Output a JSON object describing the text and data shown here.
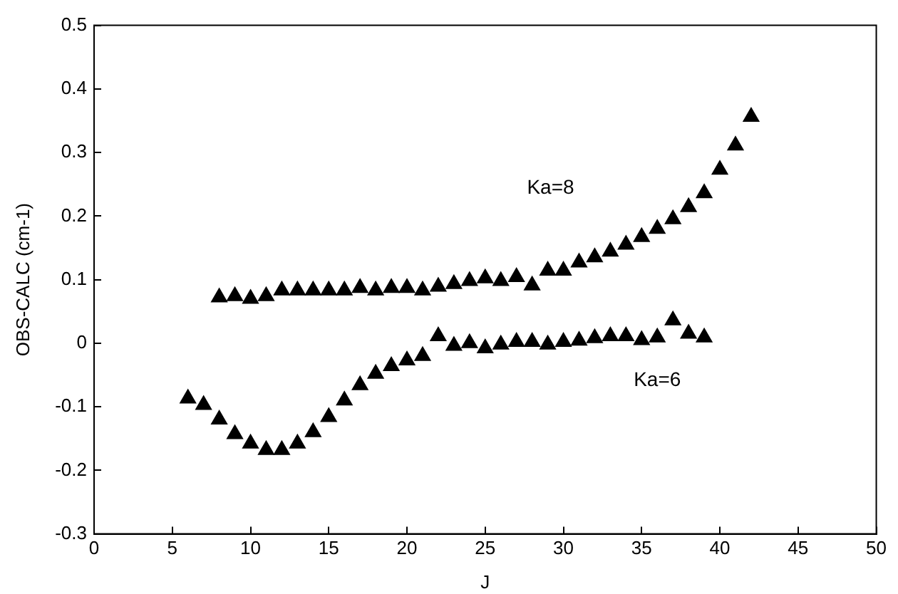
{
  "chart_data": {
    "type": "scatter",
    "xlabel": "J",
    "ylabel": "OBS-CALC (cm-1)",
    "marker": "triangle",
    "grid": false,
    "legend": false,
    "xlim": [
      0,
      50
    ],
    "xticks": [
      0,
      5,
      10,
      15,
      20,
      25,
      30,
      35,
      40,
      45,
      50
    ],
    "ylim": [
      -0.3,
      0.5
    ],
    "yticks": [
      -0.3,
      -0.2,
      -0.1,
      0,
      0.1,
      0.2,
      0.3,
      0.4,
      0.5
    ],
    "series": [
      {
        "name": "Ka=8",
        "color": "#000000",
        "x": [
          8,
          9,
          10,
          11,
          12,
          13,
          14,
          15,
          16,
          17,
          18,
          19,
          20,
          21,
          22,
          23,
          24,
          25,
          26,
          27,
          28,
          29,
          30,
          31,
          32,
          33,
          34,
          35,
          36,
          37,
          38,
          39,
          40,
          41,
          42
        ],
        "values": [
          0.072,
          0.074,
          0.07,
          0.074,
          0.083,
          0.083,
          0.083,
          0.083,
          0.083,
          0.087,
          0.083,
          0.087,
          0.087,
          0.083,
          0.089,
          0.093,
          0.098,
          0.102,
          0.098,
          0.104,
          0.091,
          0.114,
          0.114,
          0.127,
          0.135,
          0.144,
          0.155,
          0.167,
          0.18,
          0.195,
          0.214,
          0.236,
          0.273,
          0.311,
          0.356
        ]
      },
      {
        "name": "Ka=6",
        "color": "#000000",
        "x": [
          6,
          7,
          8,
          9,
          10,
          11,
          12,
          13,
          14,
          15,
          16,
          17,
          18,
          19,
          20,
          21,
          22,
          23,
          24,
          25,
          26,
          27,
          28,
          29,
          30,
          31,
          32,
          33,
          34,
          35,
          36,
          37,
          38,
          39
        ],
        "values": [
          -0.087,
          -0.097,
          -0.12,
          -0.143,
          -0.158,
          -0.168,
          -0.168,
          -0.158,
          -0.14,
          -0.116,
          -0.09,
          -0.066,
          -0.048,
          -0.036,
          -0.027,
          -0.02,
          0.011,
          -0.004,
          0,
          -0.008,
          -0.002,
          0.002,
          0.002,
          -0.002,
          0.002,
          0.004,
          0.008,
          0.011,
          0.011,
          0.005,
          0.009,
          0.036,
          0.015,
          0.009
        ]
      }
    ]
  }
}
